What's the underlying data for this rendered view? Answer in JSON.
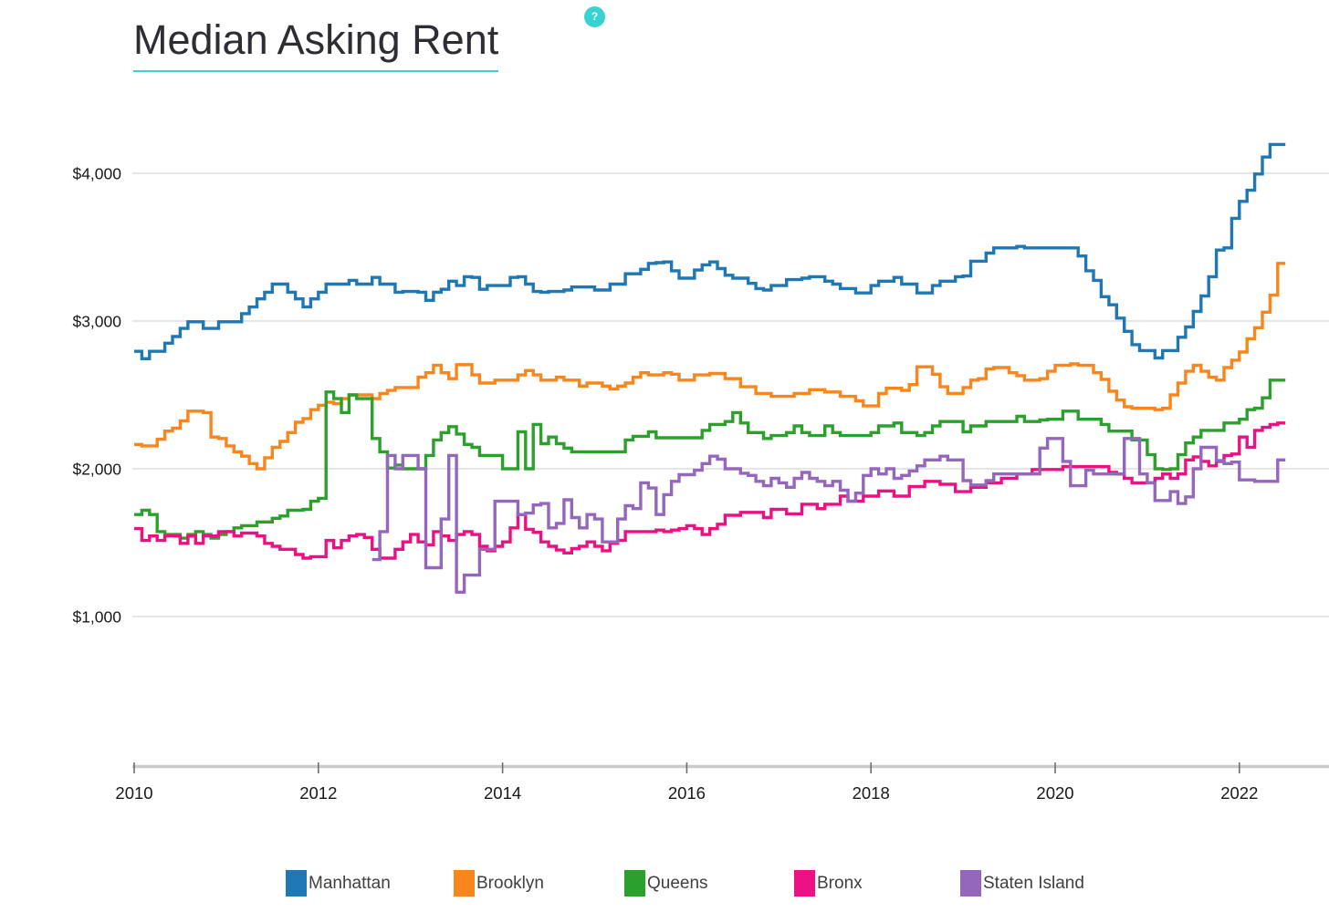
{
  "header": {
    "title": "Median Asking Rent",
    "help_glyph": "?",
    "underline_color": "#41d1d1",
    "help_badge_color": "#39d2d2"
  },
  "legend": {
    "items": [
      {
        "label": "Manhattan",
        "color": "#1f77b4"
      },
      {
        "label": "Brooklyn",
        "color": "#f8861d"
      },
      {
        "label": "Queens",
        "color": "#2ca02c"
      },
      {
        "label": "Bronx",
        "color": "#ec1182"
      },
      {
        "label": "Staten Island",
        "color": "#9467bd"
      }
    ]
  },
  "chart_data": {
    "type": "line",
    "step": true,
    "title": "Median Asking Rent",
    "frequency": "monthly",
    "x_start": "2010-01",
    "x_end": "2022-06",
    "grid": true,
    "legend_position": "bottom",
    "ylim": [
      1000,
      4300
    ],
    "y_gridlines": [
      {
        "label": "$4,000",
        "value": 4000
      },
      {
        "label": "$3,000",
        "value": 3000
      },
      {
        "label": "$2,000",
        "value": 2000
      },
      {
        "label": "$1,000",
        "value": 1000
      }
    ],
    "x_ticks": [
      {
        "label": "2010",
        "year": 2010
      },
      {
        "label": "2012",
        "year": 2012
      },
      {
        "label": "2014",
        "year": 2014
      },
      {
        "label": "2016",
        "year": 2016
      },
      {
        "label": "2018",
        "year": 2018
      },
      {
        "label": "2020",
        "year": 2020
      },
      {
        "label": "2022",
        "year": 2022
      }
    ],
    "series": [
      {
        "name": "Manhattan",
        "color": "#1f77b4",
        "values": [
          2795,
          2745,
          2795,
          2795,
          2850,
          2895,
          2950,
          2995,
          2995,
          2950,
          2950,
          2995,
          2995,
          2995,
          3050,
          3095,
          3150,
          3195,
          3250,
          3250,
          3195,
          3150,
          3095,
          3150,
          3195,
          3250,
          3250,
          3250,
          3275,
          3250,
          3250,
          3295,
          3250,
          3250,
          3195,
          3200,
          3200,
          3195,
          3140,
          3195,
          3215,
          3270,
          3240,
          3300,
          3295,
          3215,
          3240,
          3240,
          3240,
          3295,
          3300,
          3250,
          3200,
          3195,
          3200,
          3200,
          3210,
          3230,
          3230,
          3230,
          3210,
          3210,
          3250,
          3250,
          3320,
          3320,
          3350,
          3390,
          3395,
          3400,
          3340,
          3290,
          3290,
          3345,
          3380,
          3400,
          3355,
          3310,
          3290,
          3290,
          3255,
          3220,
          3210,
          3240,
          3240,
          3280,
          3280,
          3290,
          3300,
          3300,
          3270,
          3250,
          3220,
          3220,
          3190,
          3190,
          3240,
          3270,
          3270,
          3295,
          3250,
          3250,
          3190,
          3190,
          3240,
          3270,
          3270,
          3300,
          3305,
          3405,
          3405,
          3460,
          3495,
          3495,
          3495,
          3505,
          3495,
          3495,
          3495,
          3495,
          3495,
          3495,
          3495,
          3440,
          3340,
          3275,
          3165,
          3110,
          3020,
          2930,
          2840,
          2800,
          2800,
          2750,
          2800,
          2800,
          2890,
          2960,
          3065,
          3170,
          3300,
          3480,
          3495,
          3695,
          3810,
          3885,
          3995,
          4110,
          4195,
          4195
        ]
      },
      {
        "name": "Brooklyn",
        "color": "#f8861d",
        "values": [
          2165,
          2155,
          2155,
          2200,
          2255,
          2275,
          2325,
          2390,
          2390,
          2380,
          2215,
          2205,
          2155,
          2115,
          2085,
          2035,
          2000,
          2075,
          2145,
          2185,
          2245,
          2315,
          2340,
          2400,
          2430,
          2450,
          2440,
          2475,
          2500,
          2500,
          2500,
          2475,
          2510,
          2530,
          2550,
          2550,
          2550,
          2620,
          2650,
          2700,
          2650,
          2610,
          2705,
          2705,
          2635,
          2580,
          2580,
          2600,
          2600,
          2600,
          2635,
          2665,
          2635,
          2600,
          2600,
          2620,
          2600,
          2600,
          2560,
          2580,
          2580,
          2560,
          2540,
          2560,
          2580,
          2620,
          2650,
          2635,
          2635,
          2650,
          2640,
          2600,
          2600,
          2635,
          2635,
          2645,
          2645,
          2610,
          2610,
          2555,
          2555,
          2510,
          2510,
          2490,
          2490,
          2490,
          2510,
          2510,
          2535,
          2535,
          2520,
          2520,
          2490,
          2490,
          2460,
          2425,
          2425,
          2510,
          2545,
          2545,
          2530,
          2570,
          2690,
          2690,
          2640,
          2555,
          2510,
          2510,
          2550,
          2600,
          2610,
          2675,
          2685,
          2685,
          2650,
          2630,
          2600,
          2600,
          2610,
          2660,
          2700,
          2700,
          2710,
          2700,
          2700,
          2650,
          2605,
          2525,
          2465,
          2420,
          2410,
          2410,
          2410,
          2400,
          2410,
          2500,
          2580,
          2660,
          2700,
          2660,
          2620,
          2600,
          2685,
          2735,
          2790,
          2880,
          2955,
          3060,
          3175,
          3390
        ]
      },
      {
        "name": "Queens",
        "color": "#2ca02c",
        "values": [
          1690,
          1720,
          1690,
          1575,
          1555,
          1555,
          1530,
          1555,
          1575,
          1555,
          1530,
          1555,
          1575,
          1600,
          1615,
          1615,
          1640,
          1640,
          1665,
          1680,
          1720,
          1720,
          1725,
          1780,
          1800,
          2520,
          2475,
          2380,
          2500,
          2475,
          2475,
          2205,
          2115,
          2005,
          2025,
          2000,
          2000,
          2000,
          2090,
          2195,
          2245,
          2285,
          2235,
          2165,
          2145,
          2090,
          2090,
          2090,
          2000,
          2000,
          2250,
          2000,
          2300,
          2170,
          2215,
          2170,
          2140,
          2115,
          2115,
          2115,
          2115,
          2115,
          2115,
          2115,
          2195,
          2220,
          2220,
          2250,
          2210,
          2210,
          2210,
          2210,
          2210,
          2210,
          2260,
          2300,
          2300,
          2320,
          2380,
          2310,
          2245,
          2245,
          2205,
          2225,
          2225,
          2245,
          2290,
          2245,
          2225,
          2225,
          2290,
          2245,
          2225,
          2225,
          2225,
          2225,
          2245,
          2290,
          2290,
          2310,
          2245,
          2245,
          2225,
          2245,
          2290,
          2320,
          2320,
          2320,
          2250,
          2290,
          2290,
          2320,
          2320,
          2320,
          2320,
          2355,
          2320,
          2320,
          2330,
          2335,
          2335,
          2390,
          2390,
          2335,
          2335,
          2335,
          2300,
          2255,
          2255,
          2255,
          2195,
          2195,
          2095,
          2000,
          1995,
          2000,
          2095,
          2175,
          2215,
          2260,
          2260,
          2260,
          2310,
          2310,
          2335,
          2400,
          2410,
          2480,
          2600,
          2600
        ]
      },
      {
        "name": "Bronx",
        "color": "#ec1182",
        "values": [
          1595,
          1515,
          1545,
          1515,
          1545,
          1545,
          1495,
          1545,
          1495,
          1545,
          1545,
          1575,
          1575,
          1545,
          1565,
          1565,
          1545,
          1495,
          1475,
          1455,
          1455,
          1420,
          1395,
          1405,
          1405,
          1515,
          1465,
          1515,
          1545,
          1555,
          1535,
          1455,
          1395,
          1395,
          1455,
          1505,
          1555,
          1505,
          1485,
          1575,
          1545,
          1515,
          1555,
          1575,
          1555,
          1475,
          1445,
          1475,
          1505,
          1600,
          1690,
          1590,
          1570,
          1505,
          1475,
          1450,
          1430,
          1460,
          1475,
          1505,
          1475,
          1445,
          1495,
          1515,
          1575,
          1575,
          1575,
          1575,
          1585,
          1575,
          1585,
          1595,
          1615,
          1595,
          1555,
          1595,
          1625,
          1685,
          1685,
          1705,
          1705,
          1705,
          1670,
          1725,
          1725,
          1695,
          1695,
          1760,
          1760,
          1730,
          1760,
          1760,
          1815,
          1780,
          1780,
          1815,
          1815,
          1850,
          1850,
          1815,
          1815,
          1880,
          1880,
          1915,
          1915,
          1895,
          1895,
          1845,
          1845,
          1875,
          1875,
          1905,
          1905,
          1935,
          1935,
          1965,
          1965,
          1995,
          1995,
          1995,
          1995,
          2015,
          2015,
          2015,
          2015,
          2015,
          2015,
          1975,
          1965,
          1935,
          1905,
          1905,
          1905,
          1935,
          1965,
          1935,
          1965,
          2060,
          2080,
          2050,
          2020,
          2050,
          2090,
          2100,
          2215,
          2145,
          2260,
          2280,
          2300,
          2310
        ]
      },
      {
        "name": "Staten Island",
        "color": "#9467bd",
        "values": [
          null,
          null,
          null,
          null,
          null,
          null,
          null,
          null,
          null,
          null,
          null,
          null,
          null,
          null,
          null,
          null,
          null,
          null,
          null,
          null,
          null,
          null,
          null,
          null,
          null,
          null,
          null,
          null,
          null,
          null,
          null,
          1385,
          1575,
          2090,
          2000,
          2090,
          2090,
          2000,
          1330,
          1330,
          1660,
          2090,
          1165,
          1280,
          1280,
          1455,
          1455,
          1780,
          1780,
          1780,
          1690,
          1700,
          1755,
          1765,
          1600,
          1630,
          1790,
          1670,
          1600,
          1690,
          1660,
          1505,
          1505,
          1660,
          1750,
          1730,
          1905,
          1870,
          1690,
          1825,
          1915,
          1960,
          1960,
          1990,
          2035,
          2085,
          2065,
          2000,
          2000,
          1970,
          1955,
          1915,
          1885,
          1935,
          1905,
          1875,
          1935,
          1975,
          1935,
          1915,
          1885,
          1915,
          1855,
          1780,
          1835,
          1955,
          2000,
          1965,
          2000,
          1935,
          1955,
          1985,
          2020,
          2060,
          2060,
          2085,
          2060,
          2060,
          1920,
          1890,
          1890,
          1920,
          1965,
          1965,
          1965,
          1965,
          1965,
          1965,
          2140,
          2205,
          2205,
          2050,
          1885,
          1885,
          1990,
          1965,
          1965,
          1965,
          1965,
          2205,
          2205,
          1965,
          1905,
          1785,
          1785,
          1845,
          1765,
          1810,
          2000,
          2145,
          2145,
          2055,
          2035,
          2045,
          1925,
          1925,
          1915,
          1915,
          1915,
          2060
        ]
      }
    ]
  }
}
